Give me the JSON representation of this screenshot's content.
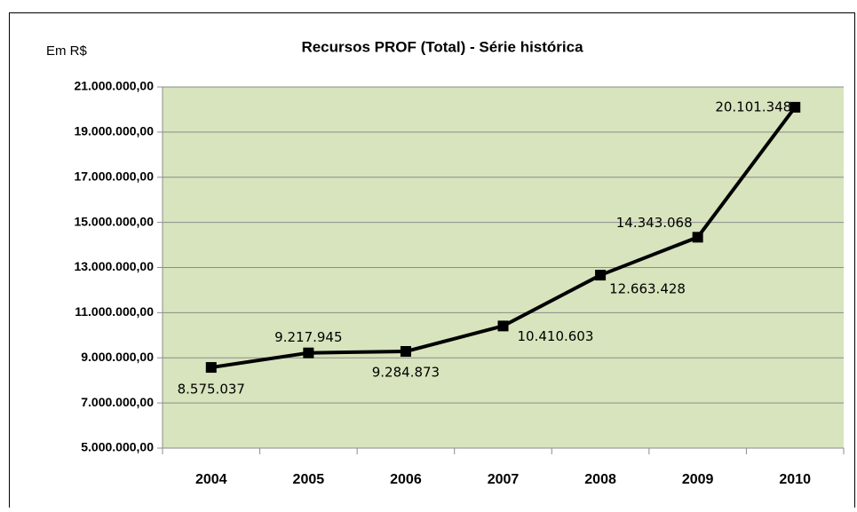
{
  "chart_data": {
    "type": "line",
    "title": "Recursos PROF (Total) - Série histórica",
    "y_axis_label": "Em R$",
    "categories": [
      "2004",
      "2005",
      "2006",
      "2007",
      "2008",
      "2009",
      "2010"
    ],
    "series": [
      {
        "name": "Recursos PROF (Total)",
        "color": "#000000",
        "values": [
          8575037,
          9217945,
          9284873,
          10410603,
          12663428,
          14343068,
          20101348
        ],
        "value_labels": [
          "8.575.037",
          "9.217.945",
          "9.284.873",
          "10.410.603",
          "12.663.428",
          "14.343.068",
          "20.101.348"
        ]
      }
    ],
    "ylim": [
      5000000,
      21000000
    ],
    "yticks": [
      {
        "value": 5000000,
        "label": "5.000.000,00"
      },
      {
        "value": 7000000,
        "label": "7.000.000,00"
      },
      {
        "value": 9000000,
        "label": "9.000.000,00"
      },
      {
        "value": 11000000,
        "label": "11.000.000,00"
      },
      {
        "value": 13000000,
        "label": "13.000.000,00"
      },
      {
        "value": 15000000,
        "label": "15.000.000,00"
      },
      {
        "value": 17000000,
        "label": "17.000.000,00"
      },
      {
        "value": 19000000,
        "label": "19.000.000,00"
      },
      {
        "value": 21000000,
        "label": "21.000.000,00"
      }
    ],
    "grid": true,
    "plot_background": "#d7e4bd"
  }
}
